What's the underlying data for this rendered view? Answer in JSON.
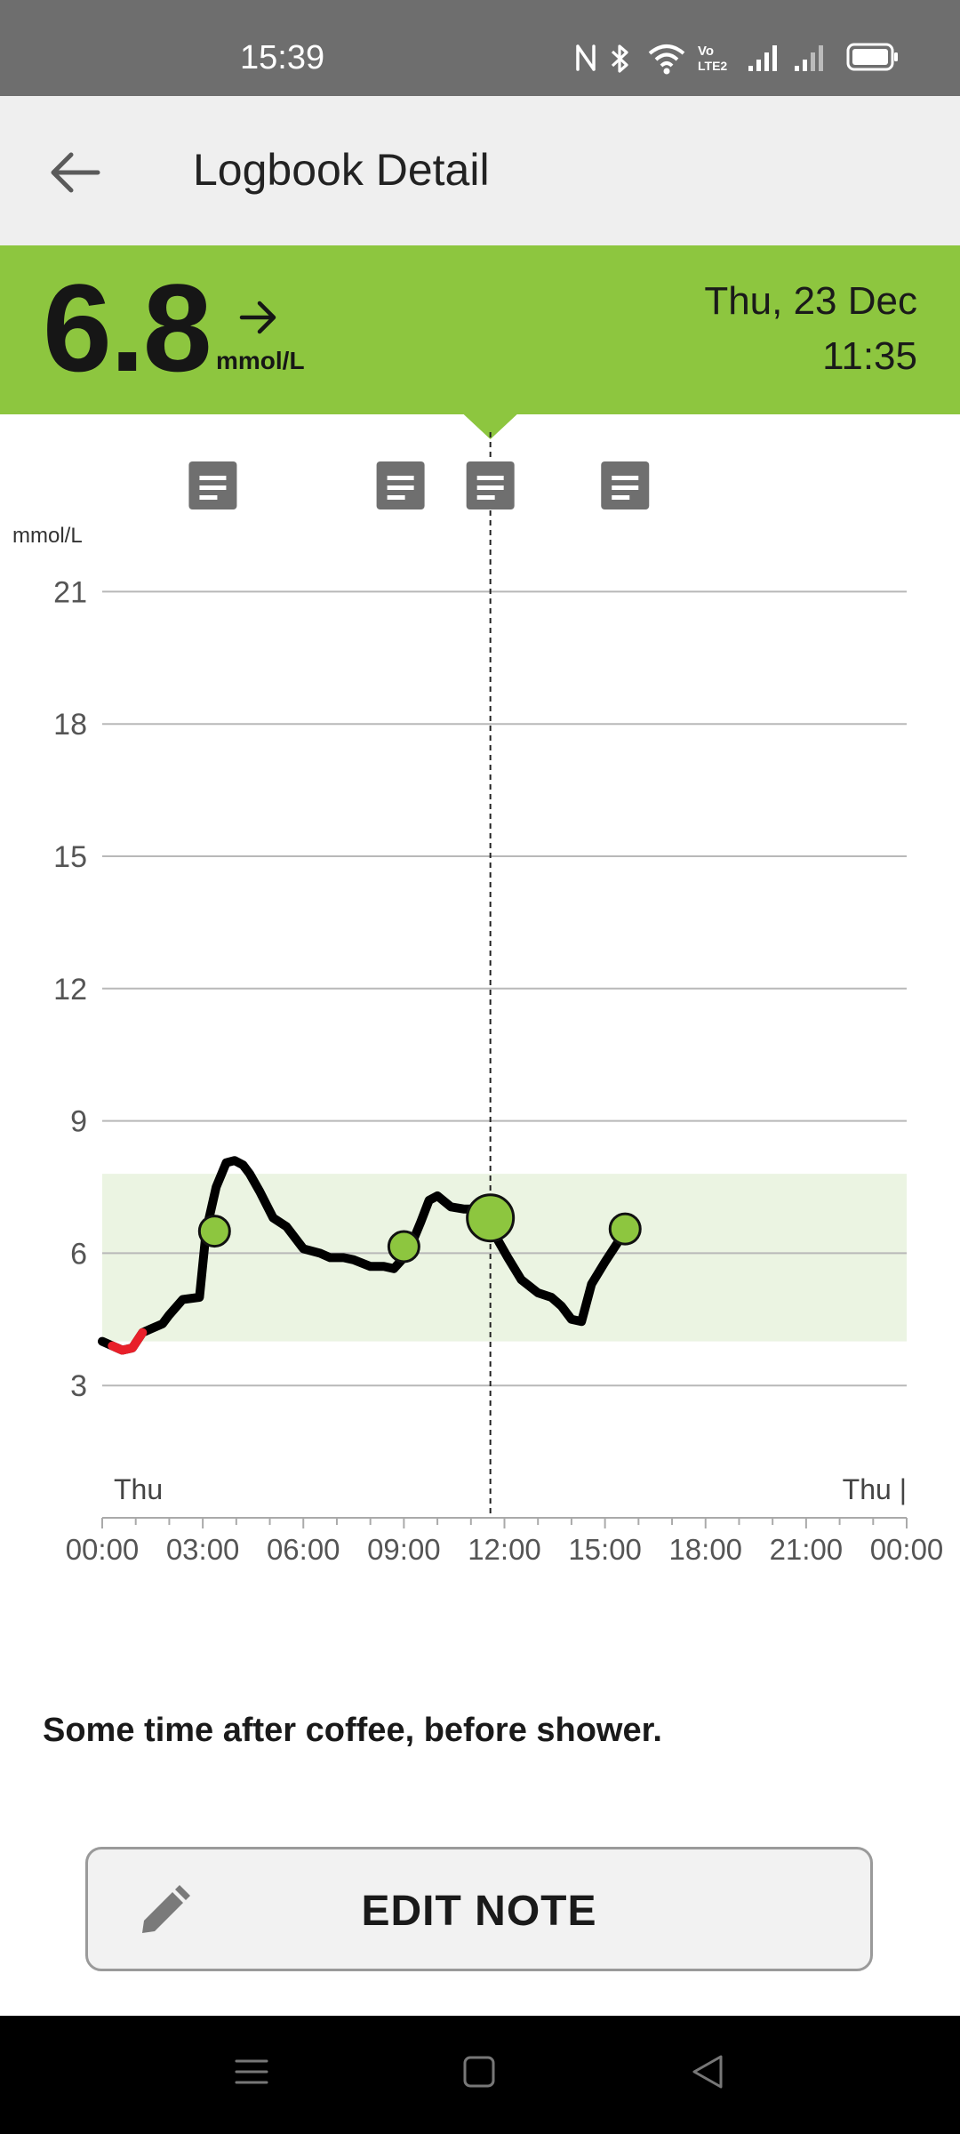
{
  "status_bar": {
    "time": "15:39",
    "icons": [
      "nfc-icon",
      "bluetooth-icon",
      "wifi-icon",
      "volte-icon",
      "signal-icon",
      "signal-weak-icon",
      "battery-icon"
    ]
  },
  "app_bar": {
    "title": "Logbook Detail",
    "back_icon": "arrow-back-icon"
  },
  "reading": {
    "value": "6.8",
    "unit": "mmol/L",
    "trend_icon": "arrow-right-icon",
    "date": "Thu, 23 Dec",
    "time": "11:35",
    "accent_color": "#8dc63f"
  },
  "chart_data": {
    "type": "line",
    "ylabel": "mmol/L",
    "yticks": [
      3,
      6,
      9,
      12,
      15,
      18,
      21
    ],
    "ylim": [
      0,
      21
    ],
    "xticks": [
      "00:00",
      "03:00",
      "06:00",
      "09:00",
      "12:00",
      "15:00",
      "18:00",
      "21:00",
      "00:00"
    ],
    "x_start_label": "Thu",
    "x_end_label": "Thu |",
    "xlim_hours": [
      0,
      24
    ],
    "target_range": [
      4.0,
      7.8
    ],
    "line_color": "#000000",
    "low_color": "#e8202a",
    "target_color": "#ebf4e2",
    "point_color": "#8dc63f",
    "series": [
      {
        "x": [
          0,
          0.3,
          0.6,
          0.9,
          1.2,
          1.5,
          1.8,
          2.0,
          2.4,
          2.9,
          3.1,
          3.4,
          3.7,
          3.95,
          4.2,
          4.4,
          4.7,
          5.1,
          5.5,
          6.0,
          6.5,
          6.8,
          7.2,
          7.5,
          8.0,
          8.4,
          8.7,
          9.0,
          9.2,
          9.5,
          9.75,
          10.0,
          10.4,
          10.8,
          11.2,
          11.58,
          11.8,
          12.1,
          12.5,
          13.0,
          13.4,
          13.7,
          14.0,
          14.3,
          14.6,
          15.0,
          15.6
        ],
        "y": [
          4.0,
          3.9,
          3.8,
          3.85,
          4.2,
          4.3,
          4.4,
          4.6,
          4.95,
          5.0,
          6.5,
          7.5,
          8.05,
          8.1,
          8.0,
          7.8,
          7.4,
          6.8,
          6.6,
          6.1,
          6.0,
          5.9,
          5.9,
          5.85,
          5.7,
          5.7,
          5.65,
          5.9,
          6.15,
          6.7,
          7.2,
          7.3,
          7.05,
          7.0,
          7.0,
          6.8,
          6.3,
          5.9,
          5.4,
          5.1,
          5.0,
          4.8,
          4.5,
          4.45,
          5.3,
          5.8,
          6.5
        ]
      }
    ],
    "low_segment_x": [
      0.3,
      1.2
    ],
    "notes_x": [
      3.3,
      8.9,
      11.58,
      15.6
    ],
    "points": [
      {
        "x": 3.35,
        "y": 6.5
      },
      {
        "x": 9.0,
        "y": 6.15
      },
      {
        "x": 11.58,
        "y": 6.8,
        "selected": true
      },
      {
        "x": 15.6,
        "y": 6.55
      }
    ],
    "selected_x": 11.58
  },
  "note": {
    "text": "Some time after coffee, before shower."
  },
  "edit_button": {
    "label": "EDIT NOTE",
    "icon": "pencil-icon"
  },
  "nav_bar": {
    "icons": [
      "menu-icon",
      "home-icon",
      "back-triangle-icon"
    ]
  }
}
